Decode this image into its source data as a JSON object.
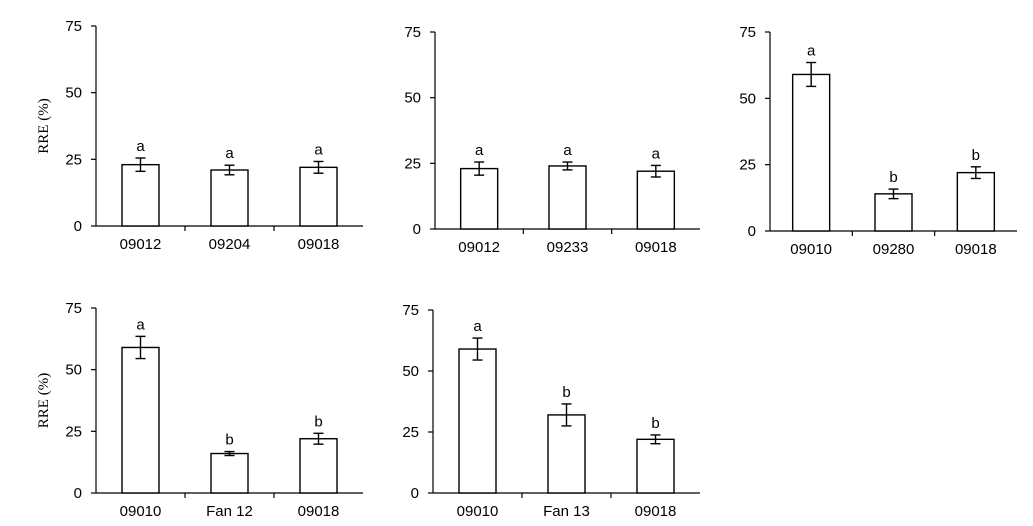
{
  "chart_data": [
    {
      "type": "bar",
      "ylabel": "RRE (%)",
      "ylim": [
        0,
        75
      ],
      "yticks": [
        "0",
        "25",
        "50",
        "75"
      ],
      "categories": [
        "09012",
        "09204",
        "09018"
      ],
      "values": [
        23,
        21,
        22
      ],
      "errors": [
        2.5,
        1.8,
        2.2
      ],
      "significance": [
        "a",
        "a",
        "a"
      ]
    },
    {
      "type": "bar",
      "ylabel": "",
      "ylim": [
        0,
        75
      ],
      "yticks": [
        "0",
        "25",
        "50",
        "75"
      ],
      "categories": [
        "09012",
        "09233",
        "09018"
      ],
      "values": [
        23,
        24,
        22
      ],
      "errors": [
        2.5,
        1.5,
        2.2
      ],
      "significance": [
        "a",
        "a",
        "a"
      ]
    },
    {
      "type": "bar",
      "ylabel": "",
      "ylim": [
        0,
        75
      ],
      "yticks": [
        "0",
        "25",
        "50",
        "75"
      ],
      "categories": [
        "09010",
        "09280",
        "09018"
      ],
      "values": [
        59,
        14,
        22
      ],
      "errors": [
        4.5,
        1.8,
        2.2
      ],
      "significance": [
        "a",
        "b",
        "b"
      ]
    },
    {
      "type": "bar",
      "ylabel": "RRE (%)",
      "ylim": [
        0,
        75
      ],
      "yticks": [
        "0",
        "25",
        "50",
        "75"
      ],
      "categories": [
        "09010",
        "Fan 12",
        "09018"
      ],
      "values": [
        59,
        16,
        22
      ],
      "errors": [
        4.5,
        0.8,
        2.2
      ],
      "significance": [
        "a",
        "b",
        "b"
      ]
    },
    {
      "type": "bar",
      "ylabel": "",
      "ylim": [
        0,
        75
      ],
      "yticks": [
        "0",
        "25",
        "50",
        "75"
      ],
      "categories": [
        "09010",
        "Fan 13",
        "09018"
      ],
      "values": [
        59,
        32,
        22
      ],
      "errors": [
        4.5,
        4.5,
        1.8
      ],
      "significance": [
        "a",
        "b",
        "b"
      ]
    }
  ]
}
